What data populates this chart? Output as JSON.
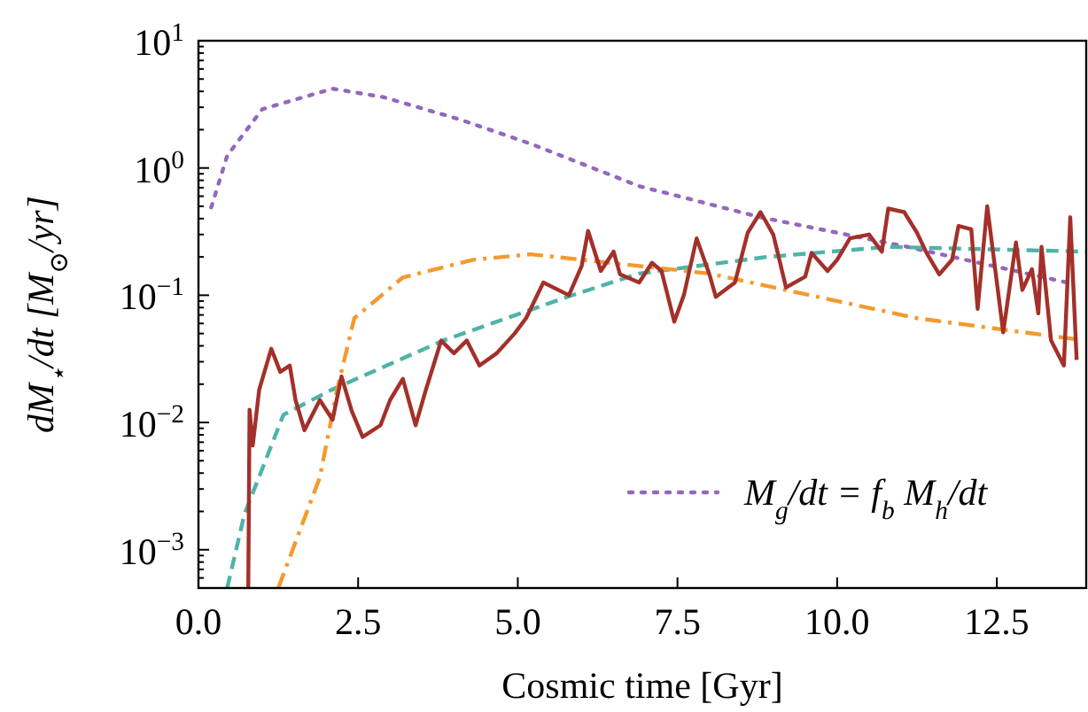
{
  "chart_data": {
    "type": "line",
    "xlabel": "Cosmic time [Gyr]",
    "ylabel": "dM$_{⋆}$/dt [M$_{⊙}$/yr]",
    "log": "y",
    "grid": false,
    "legend": "bottom right",
    "xlim": [
      0,
      13.9
    ],
    "xticks": [
      {
        "value": 0,
        "label": "0.0"
      },
      2.5,
      {
        "value": 5,
        "label": "5.0"
      },
      7.5,
      {
        "value": 10,
        "label": "10.0"
      },
      12.5
    ],
    "ylim": [
      0.0005,
      10
    ],
    "yticks": [
      {
        "value": 0.0006,
        "label": null
      },
      {
        "value": 0.0007,
        "label": null
      },
      {
        "value": 0.0008,
        "label": null
      },
      {
        "value": 0.0009,
        "label": null
      },
      {
        "value": 0.001,
        "label": "10$^{−3}$"
      },
      {
        "value": 0.002,
        "label": null
      },
      {
        "value": 0.003,
        "label": null
      },
      {
        "value": 0.004,
        "label": null
      },
      {
        "value": 0.005,
        "label": null
      },
      {
        "value": 0.006,
        "label": null
      },
      {
        "value": 0.007,
        "label": null
      },
      {
        "value": 0.008,
        "label": null
      },
      {
        "value": 0.009,
        "label": null
      },
      {
        "value": 0.01,
        "label": "10$^{−2}$"
      },
      {
        "value": 0.02,
        "label": null
      },
      {
        "value": 0.03,
        "label": null
      },
      {
        "value": 0.04,
        "label": null
      },
      {
        "value": 0.05,
        "label": null
      },
      {
        "value": 0.06,
        "label": null
      },
      {
        "value": 0.07,
        "label": null
      },
      {
        "value": 0.08,
        "label": null
      },
      {
        "value": 0.09,
        "label": null
      },
      {
        "value": 0.1,
        "label": "10$^{−1}$"
      },
      {
        "value": 0.2,
        "label": null
      },
      {
        "value": 0.3,
        "label": null
      },
      {
        "value": 0.4,
        "label": null
      },
      {
        "value": 0.5,
        "label": null
      },
      {
        "value": 0.6,
        "label": null
      },
      {
        "value": 0.7,
        "label": null
      },
      {
        "value": 0.8,
        "label": null
      },
      {
        "value": 0.9,
        "label": null
      },
      {
        "value": 1,
        "label": "10$^{0}$"
      },
      {
        "value": 2,
        "label": null
      },
      {
        "value": 3,
        "label": null
      },
      {
        "value": 4,
        "label": null
      },
      {
        "value": 5,
        "label": null
      },
      {
        "value": 6,
        "label": null
      },
      {
        "value": 7,
        "label": null
      },
      {
        "value": 8,
        "label": null
      },
      {
        "value": 9,
        "label": null
      },
      {
        "value": 10,
        "label": "10$^{1}$"
      }
    ],
    "series": [
      {
        "name": "M$_{g}$/dt = f$_{b}$ M$_{h}$/dt",
        "color": "#9467bd",
        "line_style": "dotted",
        "x": [
          0.2,
          0.45,
          1.0,
          2.1,
          2.9,
          4.1,
          5.2,
          6.9,
          8.0,
          8.8,
          11.1,
          13.6
        ],
        "values": [
          0.49,
          1.25,
          2.9,
          4.2,
          3.6,
          2.4,
          1.55,
          0.72,
          0.52,
          0.41,
          0.24,
          0.126
        ]
      },
      {
        "color": "#4fb3a8",
        "line_style": "dashed",
        "x": [
          0.45,
          0.72,
          1.33,
          2.08,
          3.83,
          5.8,
          6.9,
          8.9,
          10.8,
          13.9
        ],
        "values": [
          0.0005,
          0.0019,
          0.0115,
          0.018,
          0.044,
          0.098,
          0.148,
          0.2,
          0.24,
          0.22
        ]
      },
      {
        "color": "#f39a2e",
        "line_style": "dashdot",
        "x": [
          1.25,
          1.9,
          2.17,
          2.44,
          3.2,
          4.3,
          5.2,
          8.0,
          11.25,
          13.75
        ],
        "values": [
          0.0005,
          0.0037,
          0.018,
          0.066,
          0.138,
          0.19,
          0.21,
          0.148,
          0.066,
          0.045
        ]
      },
      {
        "color": "#a3302a",
        "line_style": "solid",
        "x": [
          0.78,
          0.8,
          0.85,
          0.95,
          1.14,
          1.28,
          1.43,
          1.52,
          1.66,
          1.9,
          2.1,
          2.24,
          2.4,
          2.57,
          2.85,
          3.0,
          3.2,
          3.4,
          3.56,
          3.8,
          4.0,
          4.2,
          4.4,
          4.67,
          4.95,
          5.13,
          5.4,
          5.8,
          6.0,
          6.1,
          6.3,
          6.5,
          6.6,
          6.9,
          7.1,
          7.25,
          7.45,
          7.6,
          7.8,
          8.0,
          8.1,
          8.4,
          8.6,
          8.8,
          9.0,
          9.2,
          9.5,
          9.6,
          9.85,
          10.0,
          10.2,
          10.5,
          10.7,
          10.8,
          11.05,
          11.25,
          11.4,
          11.6,
          11.8,
          11.9,
          12.1,
          12.2,
          12.35,
          12.6,
          12.8,
          12.9,
          13.05,
          13.15,
          13.2,
          13.35,
          13.55,
          13.65,
          13.75
        ],
        "values": [
          0.0005,
          0.0126,
          0.0066,
          0.018,
          0.038,
          0.025,
          0.028,
          0.015,
          0.0087,
          0.015,
          0.0105,
          0.023,
          0.0123,
          0.0077,
          0.0095,
          0.015,
          0.022,
          0.0095,
          0.018,
          0.044,
          0.035,
          0.044,
          0.028,
          0.035,
          0.05,
          0.066,
          0.126,
          0.1,
          0.17,
          0.32,
          0.155,
          0.22,
          0.146,
          0.126,
          0.18,
          0.155,
          0.062,
          0.1,
          0.28,
          0.146,
          0.097,
          0.126,
          0.31,
          0.45,
          0.3,
          0.115,
          0.14,
          0.215,
          0.155,
          0.19,
          0.28,
          0.3,
          0.22,
          0.48,
          0.45,
          0.31,
          0.215,
          0.146,
          0.19,
          0.35,
          0.33,
          0.078,
          0.5,
          0.051,
          0.26,
          0.11,
          0.16,
          0.072,
          0.24,
          0.044,
          0.028,
          0.41,
          0.031
        ]
      }
    ]
  }
}
